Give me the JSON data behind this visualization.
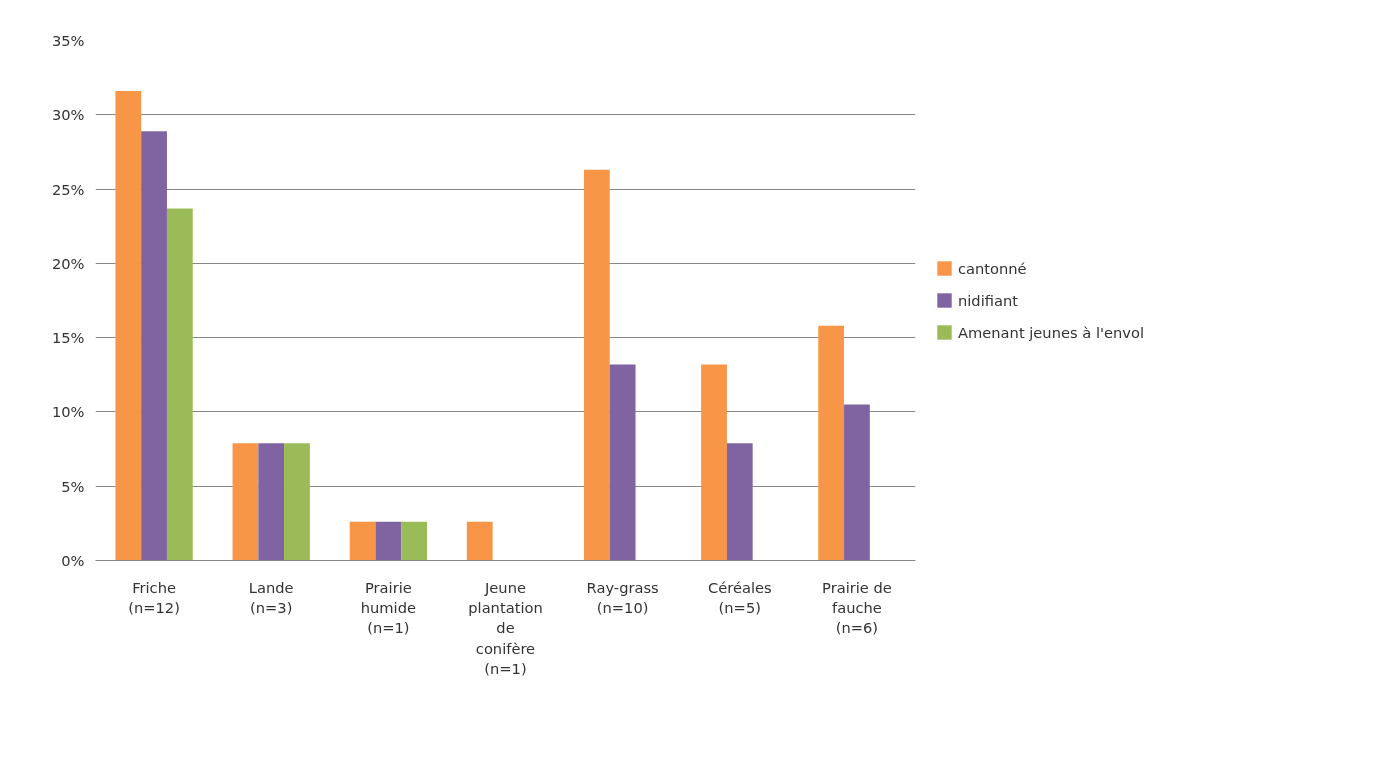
{
  "chart_data": {
    "type": "bar",
    "categories": [
      "Friche (n=12)",
      "Lande (n=3)",
      "Prairie humide (n=1)",
      "Jeune plantation de conifère (n=1)",
      "Ray-grass (n=10)",
      "Céréales (n=5)",
      "Prairie de fauche (n=6)"
    ],
    "series": [
      {
        "name": "cantonné",
        "color": "#f79646",
        "values": [
          31.6,
          7.9,
          2.6,
          2.6,
          26.3,
          13.2,
          15.8
        ]
      },
      {
        "name": "nidifiant",
        "color": "#8064a2",
        "values": [
          28.9,
          7.9,
          2.6,
          0,
          13.2,
          7.9,
          10.5
        ]
      },
      {
        "name": "Amenant jeunes à l'envol",
        "color": "#9bbb59",
        "values": [
          23.7,
          7.9,
          2.6,
          0,
          0,
          0,
          0
        ]
      }
    ],
    "ylim": [
      0,
      35
    ],
    "yticks": [
      {
        "value": 0,
        "label": "0%"
      },
      {
        "value": 5,
        "label": "5%"
      },
      {
        "value": 10,
        "label": "10%"
      },
      {
        "value": 15,
        "label": "15%"
      },
      {
        "value": 20,
        "label": "20%"
      },
      {
        "value": 25,
        "label": "25%"
      },
      {
        "value": 30,
        "label": "30%"
      },
      {
        "value": 35,
        "label": "35%"
      }
    ],
    "grid": "y",
    "legend": "right"
  }
}
